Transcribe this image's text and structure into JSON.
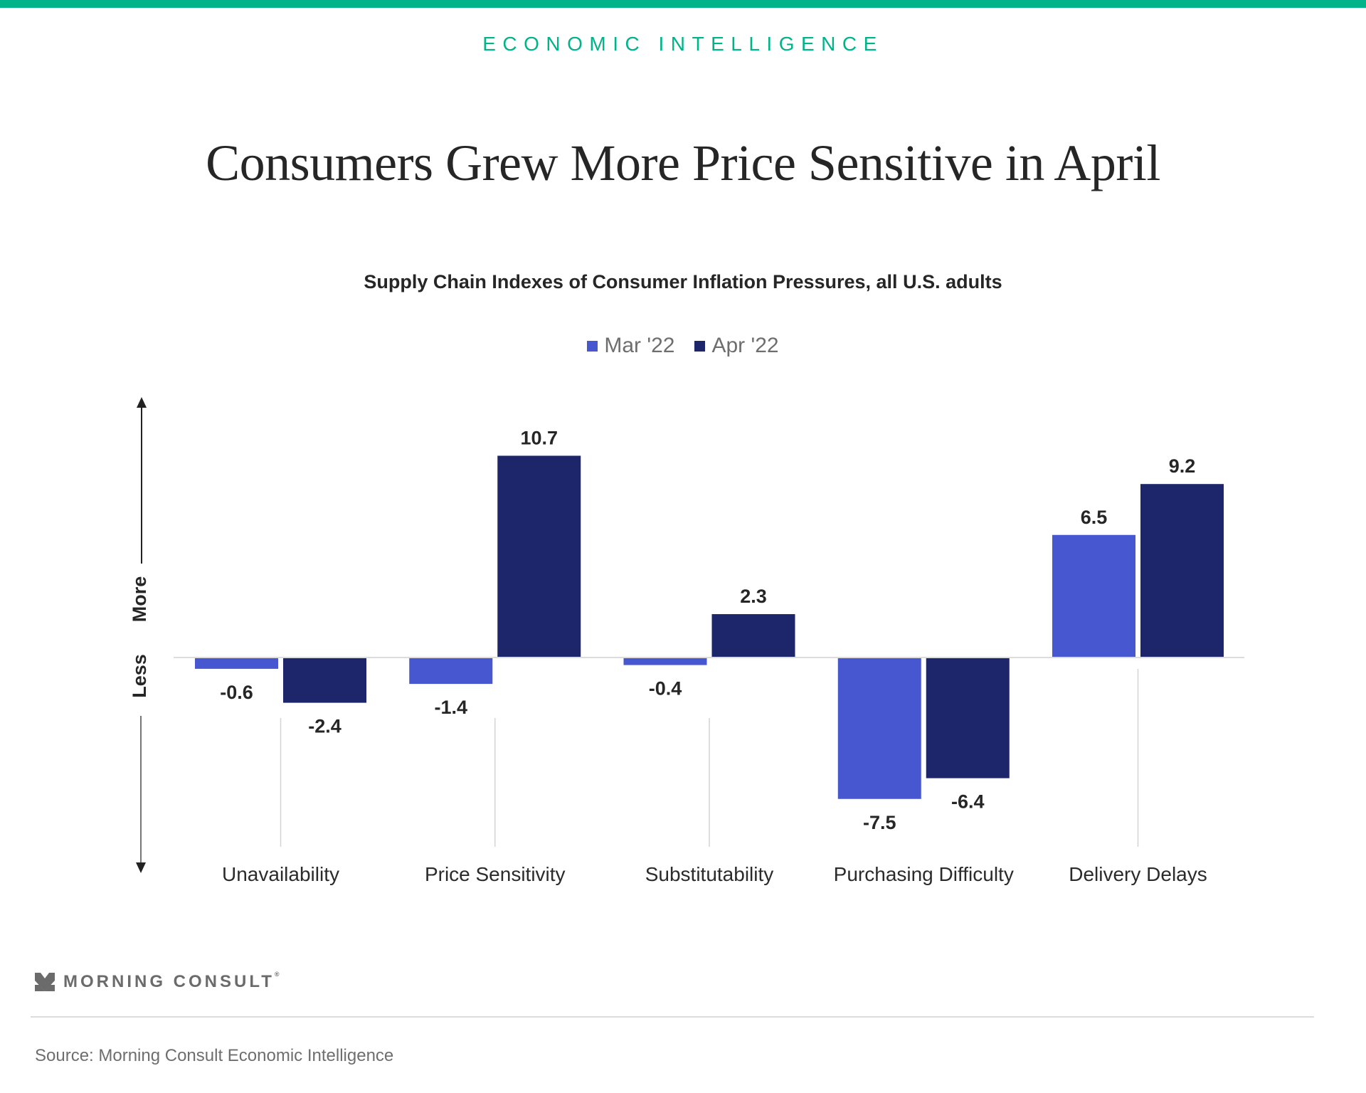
{
  "header": {
    "kicker": "ECONOMIC INTELLIGENCE",
    "title": "Consumers Grew More Price Sensitive in April",
    "brand_color": "#00b388"
  },
  "chart_data": {
    "type": "bar",
    "title": "Supply Chain Indexes of Consumer Inflation Pressures, all U.S. adults",
    "categories": [
      "Unavailability",
      "Price Sensitivity",
      "Substitutability",
      "Purchasing Difficulty",
      "Delivery Delays"
    ],
    "series": [
      {
        "name": "Mar '22",
        "color": "#4657cf",
        "values": [
          -0.6,
          -1.4,
          -0.4,
          -7.5,
          6.5
        ],
        "labels": [
          "-0.6",
          "-1.4",
          "-0.4",
          "-7.5",
          "6.5"
        ]
      },
      {
        "name": "Apr '22",
        "color": "#1e266b",
        "values": [
          -2.4,
          10.7,
          2.3,
          -6.4,
          9.2
        ],
        "labels": [
          "-2.4",
          "10.7",
          "2.3",
          "-6.4",
          "9.2"
        ]
      }
    ],
    "xlabel": "",
    "ylabel_top": "More",
    "ylabel_bottom": "Less",
    "ylim": [
      -8.5,
      13.3
    ],
    "grid": false,
    "legend_position": "top-center"
  },
  "footer": {
    "logo_text": "MORNING CONSULT",
    "logo_mark": "®",
    "source": "Source: Morning Consult Economic Intelligence"
  }
}
